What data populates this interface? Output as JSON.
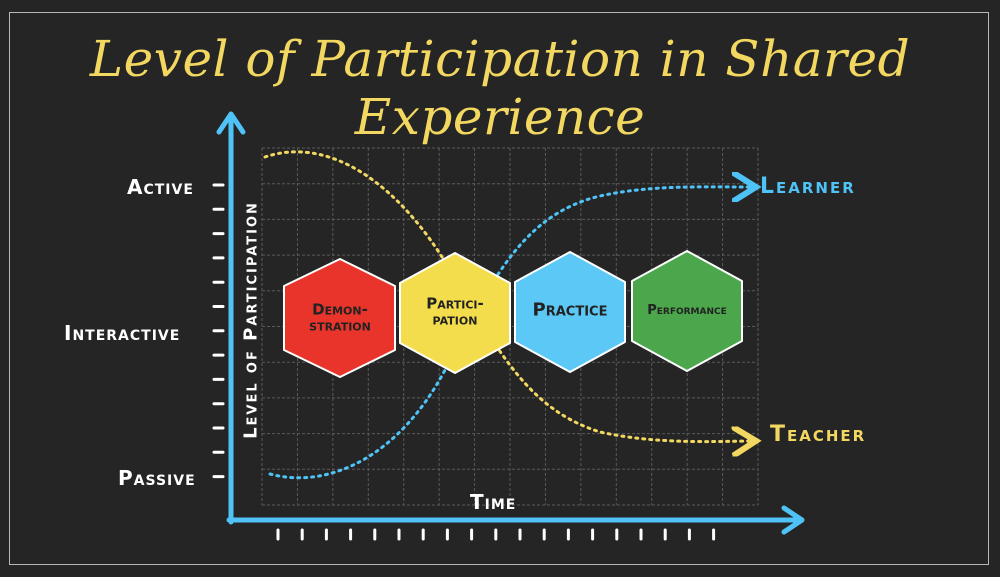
{
  "title": "Level of Participation in Shared Experience",
  "y_axis": {
    "title": "Level of Participation",
    "ticks": [
      "Active",
      "Interactive",
      "Passive"
    ]
  },
  "x_axis": {
    "title": "Time"
  },
  "curves": [
    {
      "name": "Learner",
      "color": "#4fc3f7",
      "trend": "passive-to-active"
    },
    {
      "name": "Teacher",
      "color": "#f2d861",
      "trend": "active-to-passive"
    }
  ],
  "stages": [
    {
      "label": "Demon-\nstration",
      "color": "#e8342b"
    },
    {
      "label": "Partici-\npation",
      "color": "#f4dd4c"
    },
    {
      "label": "Practice",
      "color": "#5bc8f5"
    },
    {
      "label": "Performance",
      "color": "#4ca64c"
    }
  ],
  "colors": {
    "background": "#252525",
    "axis": "#4fc3f7",
    "title": "#f2d861",
    "grid": "#5a5a5a"
  }
}
